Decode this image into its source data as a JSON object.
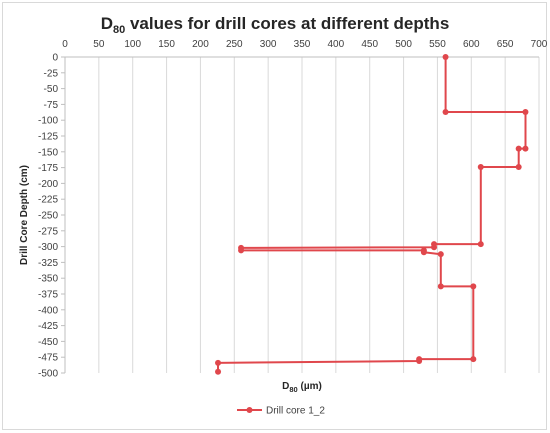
{
  "chart_data": {
    "type": "line",
    "title": "D80 values for drill cores at different depths",
    "title_main": "D",
    "title_sub": "80",
    "title_rest": " values for drill cores at different depths",
    "xlabel": "D80 (µm)",
    "xlabel_main": "D",
    "xlabel_sub": "80",
    "xlabel_rest": " (µm)",
    "ylabel": "Drill Core Depth (cm)",
    "xlim": [
      0,
      700
    ],
    "ylim": [
      -500,
      0
    ],
    "x_ticks": [
      0,
      50,
      100,
      150,
      200,
      250,
      300,
      350,
      400,
      450,
      500,
      550,
      600,
      650,
      700
    ],
    "y_ticks": [
      0,
      -25,
      -50,
      -75,
      -100,
      -125,
      -150,
      -175,
      -200,
      -225,
      -250,
      -275,
      -300,
      -325,
      -350,
      -375,
      -400,
      -425,
      -450,
      -475,
      -500
    ],
    "x_axis_position": "top",
    "grid": "vertical",
    "legend_position": "bottom",
    "series": [
      {
        "name": "Drill core 1_2",
        "color": "#e0474c",
        "points": [
          [
            562,
            0
          ],
          [
            562,
            -87
          ],
          [
            680,
            -87
          ],
          [
            680,
            -145
          ],
          [
            670,
            -145
          ],
          [
            670,
            -174
          ],
          [
            614,
            -174
          ],
          [
            614,
            -296
          ],
          [
            545,
            -296
          ],
          [
            545,
            -301
          ],
          [
            260,
            -302
          ],
          [
            260,
            -306
          ],
          [
            530,
            -306
          ],
          [
            530,
            -309
          ],
          [
            555,
            -312
          ],
          [
            555,
            -363
          ],
          [
            603,
            -363
          ],
          [
            603,
            -478
          ],
          [
            523,
            -478
          ],
          [
            523,
            -481
          ],
          [
            226,
            -484
          ],
          [
            226,
            -498
          ]
        ]
      }
    ]
  }
}
